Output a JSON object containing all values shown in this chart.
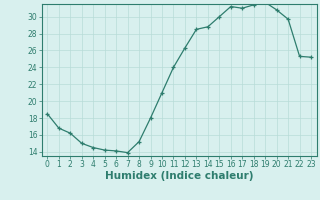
{
  "x": [
    0,
    1,
    2,
    3,
    4,
    5,
    6,
    7,
    8,
    9,
    10,
    11,
    12,
    13,
    14,
    15,
    16,
    17,
    18,
    19,
    20,
    21,
    22,
    23
  ],
  "y": [
    18.5,
    16.8,
    16.2,
    15.0,
    14.5,
    14.2,
    14.1,
    13.9,
    15.2,
    18.0,
    21.0,
    24.0,
    26.3,
    28.5,
    28.8,
    30.0,
    31.2,
    31.0,
    31.4,
    31.7,
    30.8,
    29.7,
    25.3,
    25.2
  ],
  "line_color": "#2e7d6e",
  "marker": "+",
  "marker_size": 3.5,
  "bg_color": "#d8f0ee",
  "grid_color": "#b8dcd8",
  "xlabel": "Humidex (Indice chaleur)",
  "ylim": [
    13.5,
    31.5
  ],
  "xlim": [
    -0.5,
    23.5
  ],
  "yticks": [
    14,
    16,
    18,
    20,
    22,
    24,
    26,
    28,
    30
  ],
  "xticks": [
    0,
    1,
    2,
    3,
    4,
    5,
    6,
    7,
    8,
    9,
    10,
    11,
    12,
    13,
    14,
    15,
    16,
    17,
    18,
    19,
    20,
    21,
    22,
    23
  ],
  "tick_color": "#2e7d6e",
  "label_fontsize": 7.5,
  "tick_fontsize": 5.5,
  "linewidth": 0.9,
  "markeredgewidth": 0.9
}
